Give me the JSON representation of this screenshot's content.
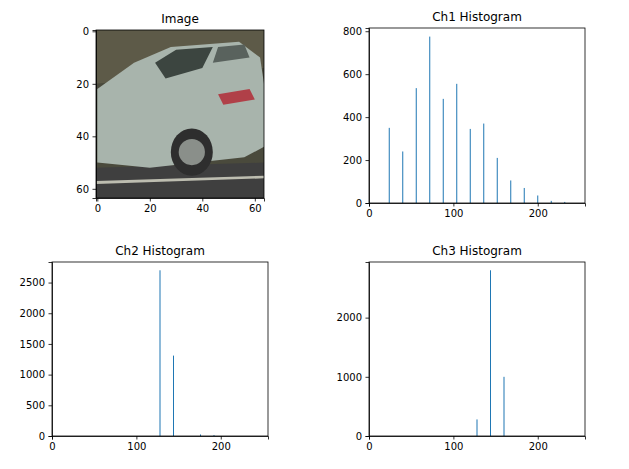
{
  "chart_data": [
    {
      "type": "image",
      "title": "Image",
      "xlim": [
        -0.5,
        63.5
      ],
      "xticks": [
        0,
        20,
        40,
        60
      ],
      "ylim": [
        63.5,
        -0.5
      ],
      "yticks": [
        0,
        20,
        40,
        60
      ]
    },
    {
      "type": "bar",
      "title": "Ch1 Histogram",
      "x": [
        24,
        40,
        56,
        72,
        88,
        104,
        120,
        136,
        152,
        168,
        184,
        200,
        216,
        232
      ],
      "values": [
        350,
        240,
        535,
        775,
        485,
        555,
        345,
        370,
        210,
        105,
        70,
        35,
        10,
        5
      ],
      "color": "#1f77b4",
      "xlim": [
        0,
        256
      ],
      "xticks": [
        0,
        100,
        200
      ],
      "ylim": [
        0,
        815
      ],
      "yticks": [
        0,
        200,
        400,
        600,
        800
      ]
    },
    {
      "type": "bar",
      "title": "Ch2 Histogram",
      "x": [
        128,
        144,
        176,
        192
      ],
      "values": [
        2700,
        1310,
        25,
        15
      ],
      "color": "#1f77b4",
      "xlim": [
        0,
        256
      ],
      "xticks": [
        0,
        100,
        200
      ],
      "ylim": [
        0,
        2835
      ],
      "yticks": [
        0,
        500,
        1000,
        1500,
        2000,
        2500
      ]
    },
    {
      "type": "bar",
      "title": "Ch3 Histogram",
      "x": [
        128,
        144,
        160
      ],
      "values": [
        280,
        2800,
        1000
      ],
      "color": "#1f77b4",
      "xlim": [
        0,
        256
      ],
      "xticks": [
        0,
        100,
        200
      ],
      "ylim": [
        0,
        2940
      ],
      "yticks": [
        0,
        1000,
        2000
      ]
    }
  ]
}
